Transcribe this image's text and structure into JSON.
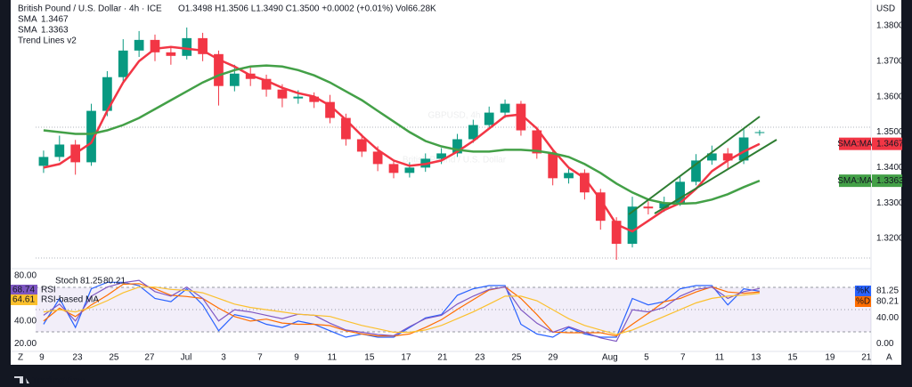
{
  "branding": "TradingView",
  "axis_buttons": [
    "Z",
    "A"
  ],
  "chart_data": [
    {
      "type": "candlestick",
      "title": "British Pound / U.S. Dollar · 4h · ICE",
      "subtitle": "O1.3498 H1.3506 L1.3490 C1.3500 +0.0002 (+0.01%) Vol66.28K",
      "watermark": "GBPUSD, 4h",
      "watermark_subtitle": "British Pound / U.S. Dollar",
      "indicators": [
        "Trend Lines v2"
      ],
      "y_unit": "USD",
      "x": [
        0,
        1,
        2,
        3,
        4,
        5,
        6,
        7,
        8,
        9,
        10,
        11,
        12,
        13,
        14,
        15,
        16,
        17,
        18,
        19,
        20,
        21,
        22,
        23,
        24,
        25,
        26,
        27,
        28,
        29,
        30,
        31,
        32,
        33,
        34,
        35,
        36,
        37,
        38,
        39,
        40,
        41,
        42,
        43,
        44,
        45
      ],
      "xlim": [
        -0.5,
        52
      ],
      "ylim": [
        1.312,
        1.386
      ],
      "yticks": [
        {
          "value": 1.32,
          "label": "1.3200"
        },
        {
          "value": 1.33,
          "label": "1.3300"
        },
        {
          "value": 1.34,
          "label": "1.3400"
        },
        {
          "value": 1.35,
          "label": "1.3500"
        },
        {
          "value": 1.36,
          "label": "1.3600"
        },
        {
          "value": 1.37,
          "label": "1.3700"
        },
        {
          "value": 1.38,
          "label": "1.3800"
        }
      ],
      "up_color": "#089981",
      "down_color": "#f23645",
      "open": [
        1.3405,
        1.343,
        1.3465,
        1.3415,
        1.356,
        1.3655,
        1.373,
        1.376,
        1.3725,
        1.3715,
        1.3765,
        1.372,
        1.363,
        1.3665,
        1.365,
        1.362,
        1.3595,
        1.36,
        1.3585,
        1.354,
        1.348,
        1.3445,
        1.341,
        1.3385,
        1.34,
        1.3425,
        1.344,
        1.348,
        1.352,
        1.3555,
        1.358,
        1.3505,
        1.344,
        1.337,
        1.3385,
        1.333,
        1.325,
        1.3185,
        1.329,
        1.3285,
        1.33,
        1.336,
        1.342,
        1.344,
        1.342,
        1.3498
      ],
      "high": [
        1.3448,
        1.349,
        1.3478,
        1.358,
        1.3672,
        1.3762,
        1.3785,
        1.3775,
        1.374,
        1.3795,
        1.378,
        1.373,
        1.369,
        1.3682,
        1.3662,
        1.3635,
        1.3618,
        1.3612,
        1.3605,
        1.3552,
        1.3495,
        1.346,
        1.3422,
        1.3415,
        1.344,
        1.3455,
        1.3495,
        1.3535,
        1.3572,
        1.3592,
        1.3588,
        1.3515,
        1.345,
        1.3402,
        1.3395,
        1.334,
        1.326,
        1.3318,
        1.3305,
        1.3318,
        1.3378,
        1.3438,
        1.3462,
        1.3455,
        1.351,
        1.3506
      ],
      "low": [
        1.3385,
        1.3418,
        1.338,
        1.3405,
        1.3545,
        1.364,
        1.3712,
        1.37,
        1.369,
        1.3705,
        1.37,
        1.3575,
        1.3615,
        1.363,
        1.36,
        1.357,
        1.358,
        1.3568,
        1.3525,
        1.3462,
        1.343,
        1.339,
        1.337,
        1.3372,
        1.3388,
        1.341,
        1.343,
        1.347,
        1.351,
        1.354,
        1.349,
        1.3425,
        1.335,
        1.3355,
        1.331,
        1.3225,
        1.314,
        1.3175,
        1.3268,
        1.3275,
        1.3292,
        1.335,
        1.3408,
        1.3395,
        1.341,
        1.349
      ],
      "close": [
        1.343,
        1.3465,
        1.3415,
        1.356,
        1.3655,
        1.373,
        1.376,
        1.3725,
        1.3715,
        1.3765,
        1.372,
        1.363,
        1.3665,
        1.365,
        1.362,
        1.3595,
        1.36,
        1.3585,
        1.354,
        1.348,
        1.3445,
        1.341,
        1.3385,
        1.34,
        1.3425,
        1.344,
        1.348,
        1.352,
        1.3555,
        1.358,
        1.3505,
        1.344,
        1.337,
        1.3385,
        1.333,
        1.325,
        1.3185,
        1.329,
        1.3285,
        1.33,
        1.336,
        1.342,
        1.344,
        1.342,
        1.3485,
        1.35
      ],
      "series": [
        {
          "name": "SMA",
          "tag": "SMA:MA",
          "legend_value": "1.3467",
          "color": "#f23645",
          "values": [
            1.34,
            1.341,
            1.344,
            1.347,
            1.356,
            1.364,
            1.37,
            1.3735,
            1.374,
            1.3735,
            1.373,
            1.3705,
            1.3685,
            1.366,
            1.3645,
            1.3625,
            1.361,
            1.36,
            1.3575,
            1.3535,
            1.349,
            1.345,
            1.342,
            1.3405,
            1.341,
            1.342,
            1.3445,
            1.3475,
            1.351,
            1.3545,
            1.355,
            1.351,
            1.345,
            1.34,
            1.337,
            1.331,
            1.324,
            1.322,
            1.325,
            1.328,
            1.33,
            1.334,
            1.339,
            1.342,
            1.3445,
            1.3467
          ]
        },
        {
          "name": "SMA",
          "tag": "SMA:MA",
          "legend_value": "1.3363",
          "color": "#43a047",
          "values": [
            1.3505,
            1.35,
            1.3495,
            1.3495,
            1.3505,
            1.352,
            1.354,
            1.3565,
            1.359,
            1.3615,
            1.364,
            1.366,
            1.3675,
            1.3685,
            1.3688,
            1.3685,
            1.3675,
            1.366,
            1.364,
            1.3615,
            1.359,
            1.356,
            1.353,
            1.35,
            1.3475,
            1.346,
            1.345,
            1.3445,
            1.3445,
            1.345,
            1.345,
            1.3447,
            1.344,
            1.343,
            1.341,
            1.3385,
            1.3355,
            1.333,
            1.331,
            1.33,
            1.3298,
            1.33,
            1.331,
            1.3325,
            1.3345,
            1.3363
          ]
        }
      ]
    },
    {
      "type": "line",
      "title": "Stoch",
      "x": [
        0,
        1,
        2,
        3,
        4,
        5,
        6,
        7,
        8,
        9,
        10,
        11,
        12,
        13,
        14,
        15,
        16,
        17,
        18,
        19,
        20,
        21,
        22,
        23,
        24,
        25,
        26,
        27,
        28,
        29,
        30,
        31,
        32,
        33,
        34,
        35,
        36,
        37,
        38,
        39,
        40,
        41,
        42,
        43,
        44,
        45
      ],
      "xlim": [
        -0.5,
        52
      ],
      "xticks": [
        {
          "value": -0.11,
          "label": "9"
        },
        {
          "value": 2.13,
          "label": "23"
        },
        {
          "value": 4.42,
          "label": "25"
        },
        {
          "value": 6.66,
          "label": "27"
        },
        {
          "value": 8.96,
          "label": "Jul"
        },
        {
          "value": 11.31,
          "label": "3"
        },
        {
          "value": 13.6,
          "label": "7"
        },
        {
          "value": 15.9,
          "label": "9"
        },
        {
          "value": 18.13,
          "label": "11"
        },
        {
          "value": 20.48,
          "label": "15"
        },
        {
          "value": 22.78,
          "label": "17"
        },
        {
          "value": 25.07,
          "label": "21"
        },
        {
          "value": 27.42,
          "label": "23"
        },
        {
          "value": 29.72,
          "label": "25"
        },
        {
          "value": 32.01,
          "label": "29"
        },
        {
          "value": 35.59,
          "label": "Aug"
        },
        {
          "value": 37.89,
          "label": "5"
        },
        {
          "value": 40.18,
          "label": "7"
        },
        {
          "value": 42.48,
          "label": "11"
        },
        {
          "value": 44.77,
          "label": "13"
        },
        {
          "value": 47.07,
          "label": "15"
        },
        {
          "value": 49.42,
          "label": "19"
        },
        {
          "value": 51.71,
          "label": "21"
        }
      ],
      "ylim": [
        -12,
        112
      ],
      "yticks": [
        {
          "value": 0,
          "label": "0.00"
        },
        {
          "value": 40,
          "label": "40.00"
        }
      ],
      "y2lim": [
        13,
        84
      ],
      "y2ticks": [
        {
          "value": 20,
          "label": "20.00"
        },
        {
          "value": 40,
          "label": "40.00"
        },
        {
          "value": 80,
          "label": "80.00"
        }
      ],
      "series": [
        {
          "name": "%K",
          "value_label": "81.25",
          "color": "#2962ff",
          "values": [
            30,
            70,
            25,
            85,
            95,
            95,
            90,
            70,
            65,
            85,
            60,
            20,
            45,
            40,
            30,
            25,
            35,
            30,
            20,
            10,
            15,
            10,
            10,
            25,
            40,
            45,
            75,
            85,
            90,
            90,
            30,
            15,
            10,
            25,
            15,
            10,
            10,
            70,
            60,
            65,
            85,
            90,
            90,
            60,
            85,
            81.25
          ]
        },
        {
          "name": "%D",
          "value_label": "80.21",
          "color": "#ff6d00",
          "values": [
            35,
            55,
            42,
            60,
            75,
            92,
            93,
            85,
            75,
            73,
            70,
            55,
            42,
            35,
            38,
            32,
            30,
            30,
            28,
            20,
            15,
            12,
            12,
            15,
            25,
            37,
            53,
            68,
            83,
            88,
            70,
            45,
            18,
            17,
            17,
            17,
            12,
            30,
            47,
            65,
            70,
            80,
            88,
            80,
            78,
            80.21
          ]
        },
        {
          "name": "RSI",
          "value_label": "68.74",
          "color": "#7e57c2",
          "axis": "y2",
          "values": [
            45,
            55,
            40,
            62,
            70,
            74,
            76,
            66,
            62,
            70,
            60,
            40,
            50,
            48,
            45,
            42,
            46,
            45,
            38,
            32,
            30,
            28,
            27,
            35,
            42,
            45,
            55,
            62,
            68,
            70,
            50,
            38,
            30,
            35,
            30,
            25,
            22,
            50,
            48,
            52,
            62,
            68,
            70,
            60,
            66,
            68.74
          ]
        },
        {
          "name": "RSI-based MA",
          "value_label": "64.61",
          "color": "#fbc02d",
          "axis": "y2",
          "values": [
            48,
            50,
            48,
            52,
            58,
            65,
            70,
            70,
            68,
            67,
            65,
            60,
            55,
            52,
            50,
            48,
            46,
            45,
            44,
            40,
            36,
            33,
            30,
            30,
            32,
            36,
            42,
            48,
            55,
            62,
            62,
            58,
            50,
            42,
            36,
            32,
            28,
            32,
            38,
            44,
            50,
            56,
            60,
            62,
            63,
            64.61
          ]
        }
      ]
    }
  ]
}
